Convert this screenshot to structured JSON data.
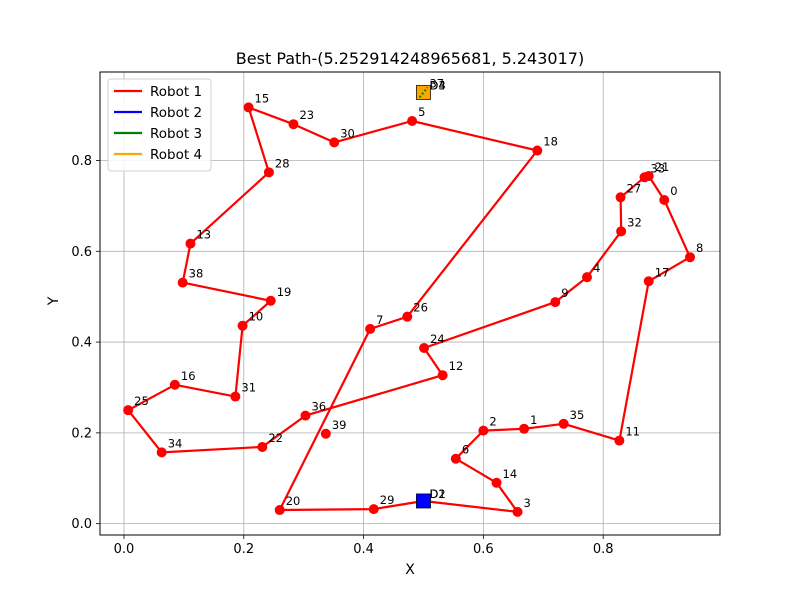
{
  "chart_data": {
    "type": "line",
    "title": "Best Path-(5.252914248965681, 5.243017)",
    "xlabel": "X",
    "ylabel": "Y",
    "xlim": [
      -0.04,
      0.995
    ],
    "ylim": [
      -0.025,
      0.995
    ],
    "xticks": [
      0.0,
      0.2,
      0.4,
      0.6,
      0.8
    ],
    "yticks": [
      0.0,
      0.2,
      0.4,
      0.6,
      0.8
    ],
    "xtick_labels": [
      "0.0",
      "0.2",
      "0.4",
      "0.6",
      "0.8"
    ],
    "ytick_labels": [
      "0.0",
      "0.2",
      "0.4",
      "0.6",
      "0.8"
    ],
    "grid": true,
    "legend": {
      "position": "top-left",
      "entries": [
        {
          "name": "Robot 1",
          "color": "#ff0000"
        },
        {
          "name": "Robot 2",
          "color": "#0000ff"
        },
        {
          "name": "Robot 3",
          "color": "#008000"
        },
        {
          "name": "Robot 4",
          "color": "#ffa500"
        }
      ]
    },
    "nodes": [
      {
        "id": "0",
        "x": 0.902,
        "y": 0.713
      },
      {
        "id": "1",
        "x": 0.668,
        "y": 0.209
      },
      {
        "id": "2",
        "x": 0.6,
        "y": 0.205
      },
      {
        "id": "3",
        "x": 0.657,
        "y": 0.026
      },
      {
        "id": "4",
        "x": 0.773,
        "y": 0.543
      },
      {
        "id": "5",
        "x": 0.481,
        "y": 0.887
      },
      {
        "id": "6",
        "x": 0.554,
        "y": 0.143
      },
      {
        "id": "7",
        "x": 0.411,
        "y": 0.429
      },
      {
        "id": "8",
        "x": 0.945,
        "y": 0.587
      },
      {
        "id": "9",
        "x": 0.72,
        "y": 0.488
      },
      {
        "id": "10",
        "x": 0.198,
        "y": 0.436
      },
      {
        "id": "11",
        "x": 0.827,
        "y": 0.183
      },
      {
        "id": "12",
        "x": 0.532,
        "y": 0.327
      },
      {
        "id": "13",
        "x": 0.111,
        "y": 0.617
      },
      {
        "id": "14",
        "x": 0.622,
        "y": 0.09
      },
      {
        "id": "15",
        "x": 0.208,
        "y": 0.917
      },
      {
        "id": "16",
        "x": 0.085,
        "y": 0.306
      },
      {
        "id": "17",
        "x": 0.876,
        "y": 0.534
      },
      {
        "id": "18",
        "x": 0.69,
        "y": 0.822
      },
      {
        "id": "19",
        "x": 0.245,
        "y": 0.491
      },
      {
        "id": "20",
        "x": 0.26,
        "y": 0.03
      },
      {
        "id": "21",
        "x": 0.876,
        "y": 0.766
      },
      {
        "id": "22",
        "x": 0.231,
        "y": 0.169
      },
      {
        "id": "23",
        "x": 0.283,
        "y": 0.88
      },
      {
        "id": "24",
        "x": 0.501,
        "y": 0.387
      },
      {
        "id": "25",
        "x": 0.007,
        "y": 0.25
      },
      {
        "id": "26",
        "x": 0.473,
        "y": 0.456
      },
      {
        "id": "27",
        "x": 0.829,
        "y": 0.719
      },
      {
        "id": "28",
        "x": 0.242,
        "y": 0.774
      },
      {
        "id": "29",
        "x": 0.417,
        "y": 0.032
      },
      {
        "id": "30",
        "x": 0.351,
        "y": 0.84
      },
      {
        "id": "31",
        "x": 0.186,
        "y": 0.28
      },
      {
        "id": "32",
        "x": 0.83,
        "y": 0.644
      },
      {
        "id": "33",
        "x": 0.869,
        "y": 0.763
      },
      {
        "id": "34",
        "x": 0.063,
        "y": 0.157
      },
      {
        "id": "35",
        "x": 0.734,
        "y": 0.22
      },
      {
        "id": "36",
        "x": 0.303,
        "y": 0.238
      },
      {
        "id": "37",
        "x": 0.5,
        "y": 0.95
      },
      {
        "id": "38",
        "x": 0.098,
        "y": 0.531
      },
      {
        "id": "39",
        "x": 0.337,
        "y": 0.198
      }
    ],
    "series": [
      {
        "name": "Robot 1",
        "color": "#ff0000",
        "path": [
          "D1",
          "3",
          "14",
          "6",
          "2",
          "1",
          "35",
          "11",
          "17",
          "8",
          "0",
          "21",
          "33",
          "27",
          "32",
          "4",
          "9",
          "24",
          "12",
          "36",
          "22",
          "34",
          "25",
          "16",
          "31",
          "10",
          "19",
          "38",
          "13",
          "28",
          "15",
          "23",
          "30",
          "5",
          "18",
          "26",
          "7",
          "20",
          "29",
          "D1"
        ]
      },
      {
        "name": "Robot 2",
        "color": "#0000ff",
        "path": []
      },
      {
        "name": "Robot 3",
        "color": "#008000",
        "path": []
      },
      {
        "name": "Robot 4",
        "color": "#ffa500",
        "path": []
      }
    ],
    "depots": [
      {
        "label": "D1",
        "x": 0.5,
        "y": 0.05,
        "color": "#0000ff"
      },
      {
        "label": "D2",
        "x": 0.5,
        "y": 0.05,
        "color": "#0000ff"
      },
      {
        "label": "D3",
        "x": 0.5,
        "y": 0.95,
        "color": "#ffa500"
      },
      {
        "label": "D4",
        "x": 0.5,
        "y": 0.95,
        "color": "#ffa500"
      }
    ]
  }
}
